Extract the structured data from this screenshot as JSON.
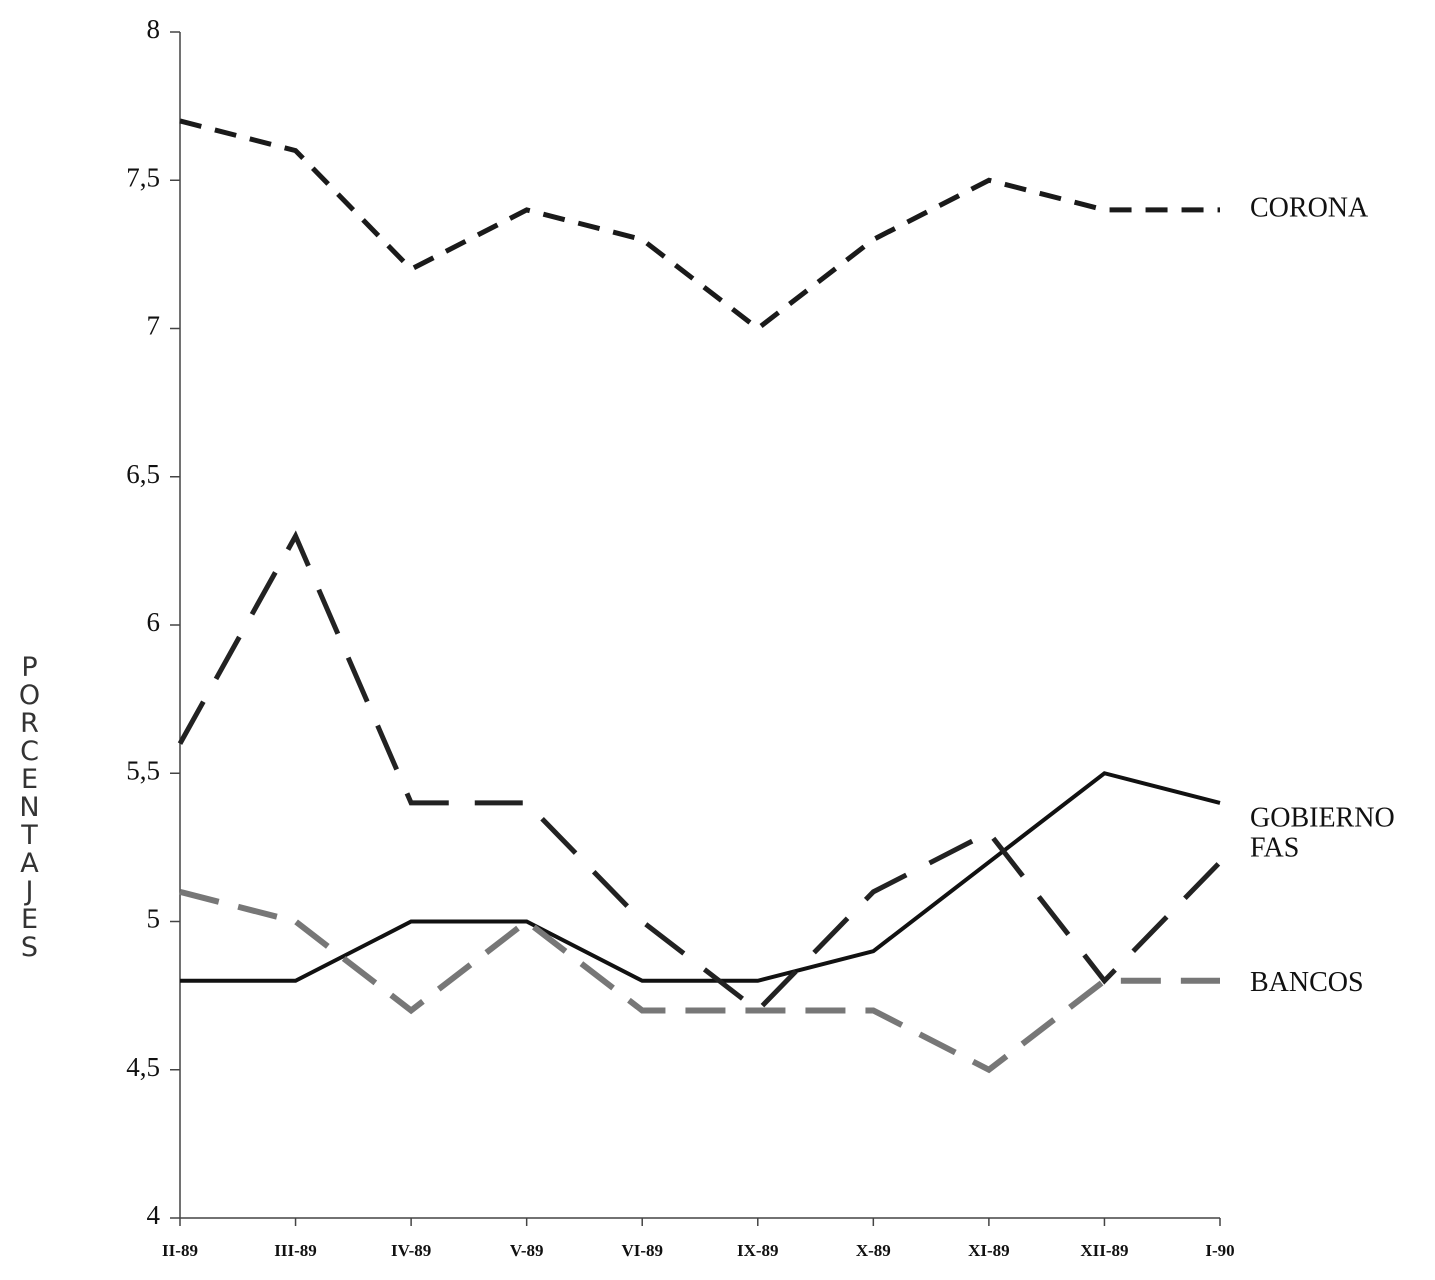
{
  "chart_data": {
    "type": "line",
    "y_label": "PORCENTAJES",
    "categories": [
      "II-89",
      "III-89",
      "IV-89",
      "V-89",
      "VI-89",
      "IX-89",
      "X-89",
      "XI-89",
      "XII-89",
      "I-90"
    ],
    "series": [
      {
        "name": "CORONA",
        "color": "#1a1a1a",
        "values": [
          7.7,
          7.6,
          7.2,
          7.4,
          7.3,
          7.0,
          7.3,
          7.5,
          7.4,
          7.4
        ]
      },
      {
        "name": "GOBIERNO",
        "color": "#111111",
        "values": [
          4.8,
          4.8,
          5.0,
          5.0,
          4.8,
          4.8,
          4.9,
          5.2,
          5.5,
          5.4
        ]
      },
      {
        "name": "FAS",
        "color": "#222222",
        "values": [
          5.6,
          6.3,
          5.4,
          5.4,
          5.0,
          4.7,
          5.1,
          5.3,
          4.8,
          5.2
        ]
      },
      {
        "name": "BANCOS",
        "color": "#777777",
        "values": [
          5.1,
          5.0,
          4.7,
          5.0,
          4.7,
          4.7,
          4.7,
          4.5,
          4.8,
          4.8
        ]
      }
    ],
    "ylim": [
      4,
      8
    ],
    "yticks": [
      4,
      {
        "value": 4.5,
        "label": "4,5"
      },
      5,
      {
        "value": 5.5,
        "label": "5,5"
      },
      6,
      {
        "value": 6.5,
        "label": "6,5"
      },
      7,
      {
        "value": 7.5,
        "label": "7,5"
      },
      8
    ],
    "grid": false
  }
}
